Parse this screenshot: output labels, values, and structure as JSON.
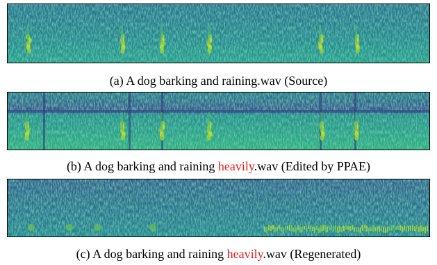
{
  "panels": [
    {
      "caption": "(a) A dog barking and raining.wav (Source)"
    },
    {
      "caption_before": "(b) A dog barking and raining ",
      "caption_highlight": "heavily",
      "caption_after": ".wav (Edited by PPAE)"
    },
    {
      "caption_before": "(c) A dog barking and raining ",
      "caption_highlight": "heavily",
      "caption_after": ".wav (Regenerated)"
    }
  ]
}
